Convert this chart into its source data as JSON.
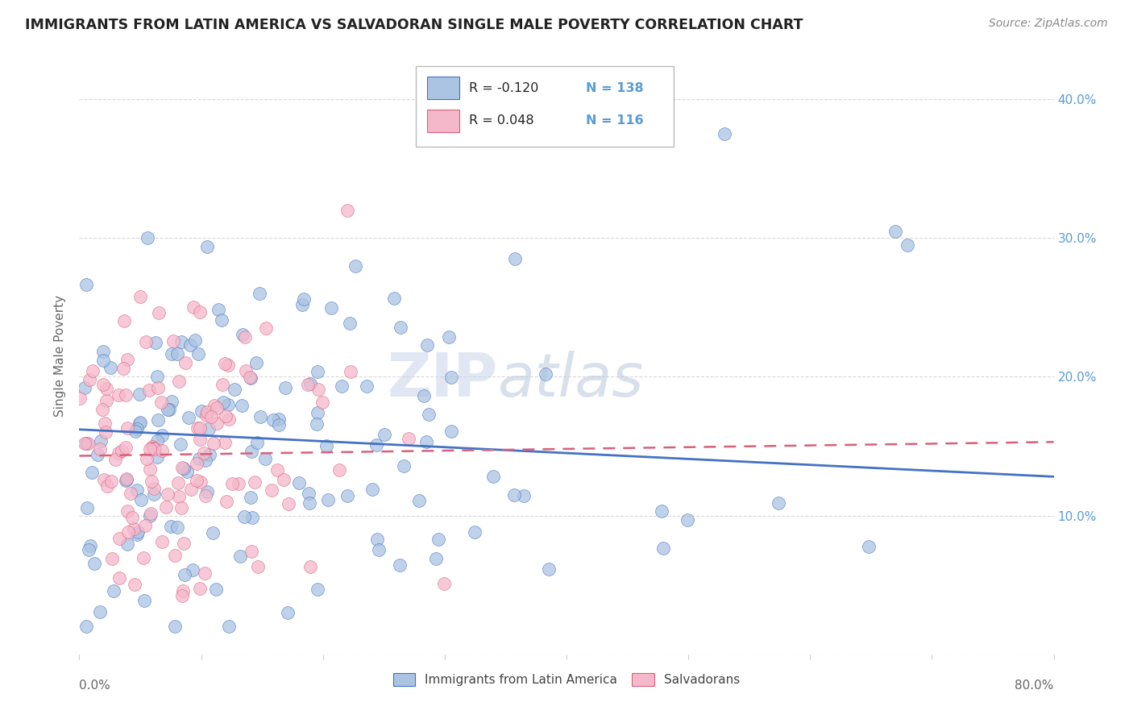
{
  "title": "IMMIGRANTS FROM LATIN AMERICA VS SALVADORAN SINGLE MALE POVERTY CORRELATION CHART",
  "source": "Source: ZipAtlas.com",
  "ylabel": "Single Male Poverty",
  "yticks": [
    0.0,
    0.1,
    0.2,
    0.3,
    0.4
  ],
  "ytick_labels_right": [
    "10.0%",
    "20.0%",
    "30.0%",
    "40.0%"
  ],
  "xlim": [
    0.0,
    0.8
  ],
  "ylim": [
    0.0,
    0.43
  ],
  "legend_series1_label": "Immigrants from Latin America",
  "legend_series2_label": "Salvadorans",
  "R1": "-0.120",
  "N1": "138",
  "R2": "0.048",
  "N2": "116",
  "color1": "#aac4e2",
  "color2": "#f5b8cb",
  "line_color1": "#4472c4",
  "line_color2": "#d9607a",
  "watermark_zip": "ZIP",
  "watermark_atlas": "atlas",
  "background_color": "#ffffff",
  "grid_color": "#d8d8d8",
  "title_color": "#222222",
  "axis_label_color": "#5b9bd5",
  "trendline1_start_y": 0.162,
  "trendline1_end_y": 0.128,
  "trendline2_start_y": 0.143,
  "trendline2_end_y": 0.153
}
